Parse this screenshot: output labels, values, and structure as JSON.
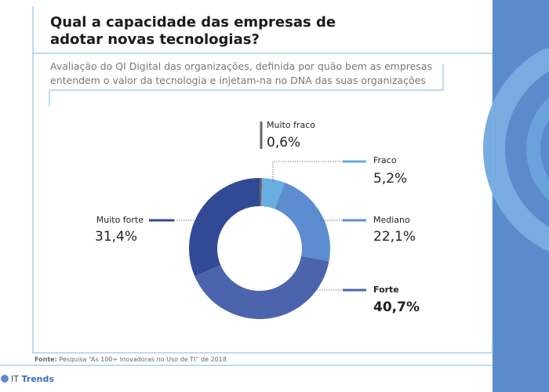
{
  "chart_data": {
    "type": "donut",
    "title": "Qual a capacidade das empresas de adotar novas tecnologias?",
    "subtitle": "Avaliação do QI Digital das organizações, definida por quão bem as empresas entendem o valor da tecnologia e injetam-na no DNA das suas organizações",
    "categories": [
      "Muito fraco",
      "Fraco",
      "Mediano",
      "Forte",
      "Muito forte"
    ],
    "values": [
      0.6,
      5.2,
      22.1,
      40.7,
      31.4
    ],
    "value_labels": [
      "0,6%",
      "5,2%",
      "22,1%",
      "40,7%",
      "31,4%"
    ],
    "colors": [
      "#666666",
      "#6aaee0",
      "#5b8dd0",
      "#4b64ad",
      "#324a96"
    ],
    "source_label": "Fonte:",
    "source": "Pesquisa “As 100+ Inovadoras no Uso de TI” de 2018",
    "brand_prefix": "IT",
    "brand_name": "Trends"
  }
}
